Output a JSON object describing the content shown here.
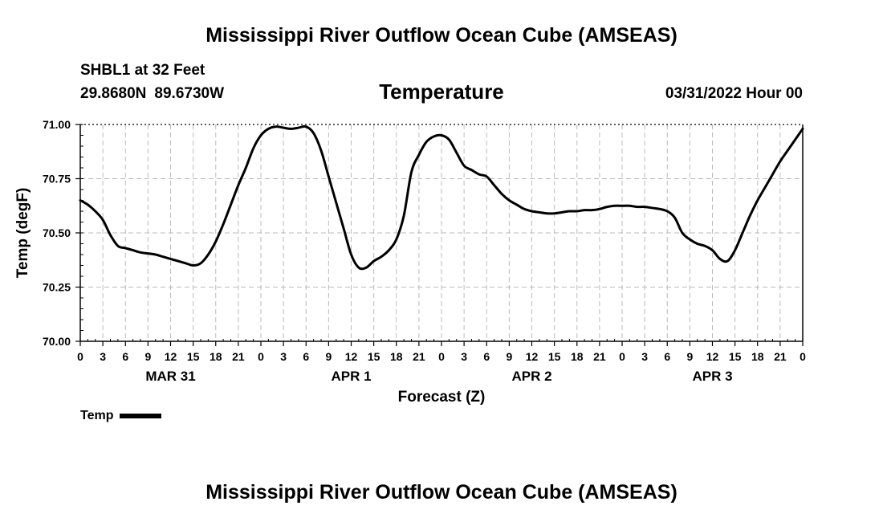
{
  "header": {
    "title": "Mississippi River Outflow Ocean Cube (AMSEAS)",
    "station": "SHBL1 at 32 Feet",
    "lat": "29.8680N",
    "lon": "89.6730W",
    "datetime": "03/31/2022 Hour 00"
  },
  "footer": {
    "title": "Mississippi River Outflow Ocean Cube (AMSEAS)"
  },
  "legend": {
    "label": "Temp"
  },
  "colors": {
    "line": "#000000",
    "grid": "#bbbbbb",
    "axis": "#000000"
  },
  "chart_data": {
    "type": "line",
    "title": "Temperature",
    "xlabel": "Forecast (Z)",
    "ylabel": "Temp (degF)",
    "ylim": [
      70.0,
      71.0
    ],
    "yticks": [
      70.0,
      70.25,
      70.5,
      70.75,
      71.0
    ],
    "ytick_labels": [
      "70.00",
      "70.25",
      "70.50",
      "70.75",
      "71.00"
    ],
    "xlim": [
      0,
      96
    ],
    "xticks": [
      0,
      3,
      6,
      9,
      12,
      15,
      18,
      21,
      24,
      27,
      30,
      33,
      36,
      39,
      42,
      45,
      48,
      51,
      54,
      57,
      60,
      63,
      66,
      69,
      72,
      75,
      78,
      81,
      84,
      87,
      90,
      93,
      96
    ],
    "xtick_labels": [
      "0",
      "3",
      "6",
      "9",
      "12",
      "15",
      "18",
      "21",
      "0",
      "3",
      "6",
      "9",
      "12",
      "15",
      "18",
      "21",
      "0",
      "3",
      "6",
      "9",
      "12",
      "15",
      "18",
      "21",
      "0",
      "3",
      "6",
      "9",
      "12",
      "15",
      "18",
      "21",
      "0"
    ],
    "day_labels": [
      {
        "label": "MAR 31",
        "x": 12
      },
      {
        "label": "APR 1",
        "x": 36
      },
      {
        "label": "APR 2",
        "x": 60
      },
      {
        "label": "APR 3",
        "x": 84
      }
    ],
    "grid": true,
    "series": [
      {
        "name": "Temp",
        "x": [
          0,
          1,
          2,
          3,
          4,
          5,
          6,
          7,
          8,
          9,
          10,
          11,
          12,
          13,
          14,
          15,
          16,
          17,
          18,
          19,
          20,
          21,
          22,
          23,
          24,
          25,
          26,
          27,
          28,
          29,
          30,
          31,
          32,
          33,
          34,
          35,
          36,
          37,
          38,
          39,
          40,
          41,
          42,
          43,
          44,
          45,
          46,
          47,
          48,
          49,
          50,
          51,
          52,
          53,
          54,
          55,
          56,
          57,
          58,
          59,
          60,
          61,
          62,
          63,
          64,
          65,
          66,
          67,
          68,
          69,
          70,
          71,
          72,
          73,
          74,
          75,
          76,
          77,
          78,
          79,
          80,
          81,
          82,
          83,
          84,
          85,
          86,
          87,
          88,
          89,
          90,
          91,
          92,
          93,
          94,
          95,
          96
        ],
        "values": [
          70.65,
          70.63,
          70.6,
          70.56,
          70.49,
          70.44,
          70.43,
          70.42,
          70.41,
          70.405,
          70.4,
          70.39,
          70.38,
          70.37,
          70.36,
          70.35,
          70.36,
          70.4,
          70.46,
          70.54,
          70.63,
          70.72,
          70.8,
          70.89,
          70.95,
          70.98,
          70.99,
          70.985,
          70.98,
          70.985,
          70.99,
          70.96,
          70.88,
          70.76,
          70.64,
          70.52,
          70.4,
          70.34,
          70.34,
          70.37,
          70.39,
          70.42,
          70.47,
          70.58,
          70.78,
          70.86,
          70.92,
          70.945,
          70.95,
          70.93,
          70.87,
          70.81,
          70.79,
          70.77,
          70.76,
          70.72,
          70.68,
          70.65,
          70.63,
          70.61,
          70.6,
          70.595,
          70.59,
          70.59,
          70.595,
          70.6,
          70.6,
          70.605,
          70.605,
          70.61,
          70.62,
          70.625,
          70.625,
          70.625,
          70.62,
          70.62,
          70.615,
          70.61,
          70.6,
          70.57,
          70.5,
          70.47,
          70.45,
          70.44,
          70.42,
          70.38,
          70.37,
          70.42,
          70.5,
          70.58,
          70.65,
          70.71,
          70.77,
          70.83,
          70.88,
          70.93,
          70.98
        ]
      }
    ]
  }
}
